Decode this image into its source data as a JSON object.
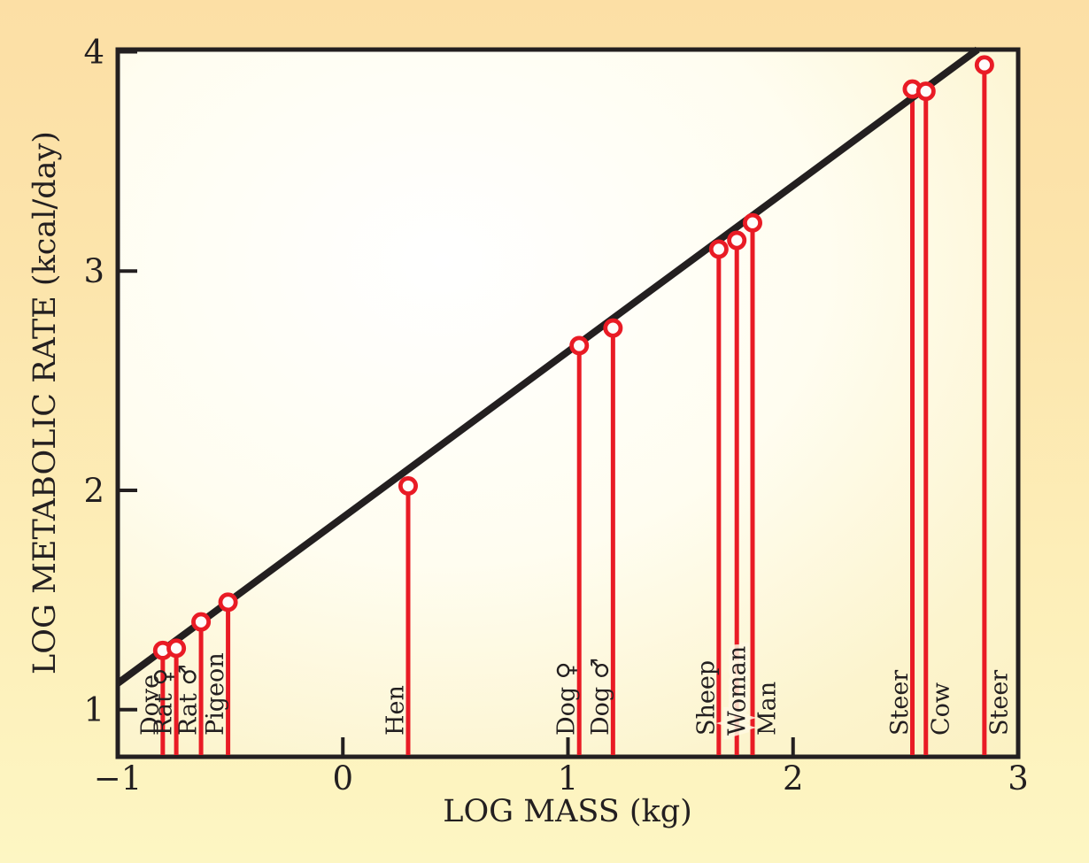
{
  "figure": {
    "background_top_color": "#fcdfa5",
    "background_bottom_color": "#fdf6c3",
    "plot_center_color": "#ffffff",
    "plot_edge_color": "#fbf1c3",
    "frame_color": "#231f20",
    "accent_red": "#e91b25",
    "marker_core_color": "#fefcfa",
    "text_color": "#231f20"
  },
  "chart_data": {
    "type": "scatter",
    "title": "",
    "xlabel": "LOG MASS (kg)",
    "ylabel": "LOG METABOLIC RATE (kcal/day)",
    "xlim": [
      -1,
      3
    ],
    "ylim": [
      0.785,
      4.01
    ],
    "x_ticks": [
      -1,
      0,
      1,
      2,
      3
    ],
    "x_tick_labels": [
      "−1",
      "0",
      "1",
      "2",
      "3"
    ],
    "y_ticks": [
      1,
      2,
      3,
      4
    ],
    "y_tick_labels": [
      "1",
      "2",
      "3",
      "4"
    ],
    "grid": false,
    "legend": "none",
    "trend_line": {
      "x1": -1,
      "y1": 1.12,
      "x2": 2.82,
      "y2": 4.01
    },
    "points": [
      {
        "label": "Dove",
        "x": -0.8,
        "y": 1.27,
        "label_side": "left"
      },
      {
        "label": "Rat ♀",
        "x": -0.74,
        "y": 1.28,
        "label_side": "left"
      },
      {
        "label": "Rat ♂",
        "x": -0.63,
        "y": 1.4,
        "label_side": "left"
      },
      {
        "label": "Pigeon",
        "x": -0.51,
        "y": 1.49,
        "label_side": "left"
      },
      {
        "label": "Hen",
        "x": 0.29,
        "y": 2.02,
        "label_side": "left"
      },
      {
        "label": "Dog ♀",
        "x": 1.05,
        "y": 2.66,
        "label_side": "left"
      },
      {
        "label": "Dog ♂",
        "x": 1.2,
        "y": 2.74,
        "label_side": "left"
      },
      {
        "label": "Sheep",
        "x": 1.67,
        "y": 3.1,
        "label_side": "left"
      },
      {
        "label": "Woman",
        "x": 1.75,
        "y": 3.14,
        "label_side": "on"
      },
      {
        "label": "Man",
        "x": 1.82,
        "y": 3.22,
        "label_side": "right"
      },
      {
        "label": "Steer",
        "x": 2.53,
        "y": 3.83,
        "label_side": "left"
      },
      {
        "label": "Cow",
        "x": 2.59,
        "y": 3.82,
        "label_side": "right"
      },
      {
        "label": "Steer",
        "x": 2.85,
        "y": 3.94,
        "label_side": "right"
      }
    ]
  }
}
